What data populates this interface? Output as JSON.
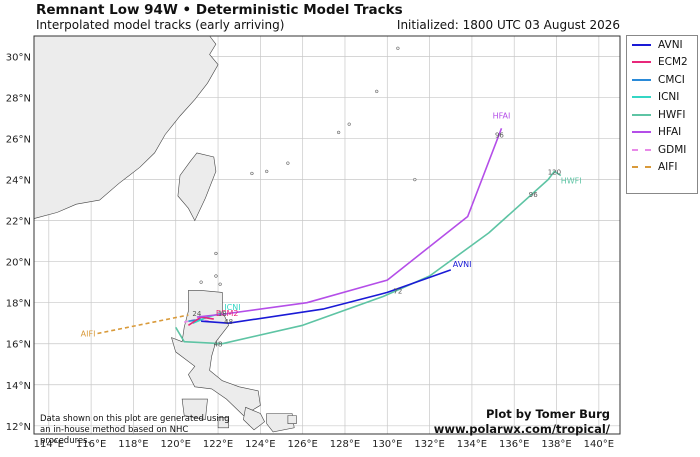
{
  "header": {
    "title": "Remnant Low 94W • Deterministic Model Tracks",
    "subtitle": "Interpolated model tracks (early arriving)",
    "initialized": "Initialized: 1800 UTC 03 August 2026"
  },
  "map": {
    "lon_range": [
      113.3,
      141.0
    ],
    "lat_range": [
      11.6,
      31.0
    ],
    "lon_ticks": [
      "114°E",
      "116°E",
      "118°E",
      "120°E",
      "122°E",
      "124°E",
      "126°E",
      "128°E",
      "130°E",
      "132°E",
      "134°E",
      "136°E",
      "138°E",
      "140°E"
    ],
    "lat_ticks": [
      "12°N",
      "14°N",
      "16°N",
      "18°N",
      "20°N",
      "22°N",
      "24°N",
      "26°N",
      "28°N",
      "30°N"
    ],
    "land_color": "#ececec",
    "ocean_color": "#ffffff"
  },
  "legend": [
    {
      "name": "AVNI",
      "color": "#1a1ad6",
      "dash": false
    },
    {
      "name": "ECM2",
      "color": "#e8287a",
      "dash": false
    },
    {
      "name": "CMCI",
      "color": "#2a8ad8",
      "dash": false
    },
    {
      "name": "ICNI",
      "color": "#34d6c4",
      "dash": false
    },
    {
      "name": "HWFI",
      "color": "#5ec4a4",
      "dash": false
    },
    {
      "name": "HFAI",
      "color": "#b44ee8",
      "dash": false
    },
    {
      "name": "GDMI",
      "color": "#e88ae8",
      "dash": true
    },
    {
      "name": "AIFI",
      "color": "#d99a3a",
      "dash": true
    }
  ],
  "tracks": [
    {
      "name": "AIFI",
      "label": "AIFI",
      "points": [
        [
          116.3,
          16.5
        ],
        [
          120.6,
          17.4
        ]
      ]
    },
    {
      "name": "GDMI",
      "label": "",
      "points": [
        [
          120.4,
          17.05
        ],
        [
          121.0,
          17.2
        ],
        [
          121.6,
          17.1
        ]
      ]
    },
    {
      "name": "ICNI",
      "label": "ICNI",
      "points": [
        [
          120.8,
          17.0
        ],
        [
          121.5,
          17.3
        ],
        [
          122.2,
          17.5
        ]
      ]
    },
    {
      "name": "CMCI",
      "label": "",
      "points": [
        [
          120.6,
          17.1
        ],
        [
          121.3,
          17.2
        ]
      ]
    },
    {
      "name": "ECM2",
      "label": "ECM2",
      "points": [
        [
          120.6,
          16.9
        ],
        [
          121.2,
          17.3
        ],
        [
          121.8,
          17.2
        ]
      ]
    },
    {
      "name": "AVNI",
      "label": "AVNI",
      "points": [
        [
          121.2,
          17.1
        ],
        [
          122.5,
          17.0
        ],
        [
          127.0,
          17.7
        ],
        [
          130.0,
          18.5
        ],
        [
          133.0,
          19.6
        ]
      ]
    },
    {
      "name": "HWFI",
      "label": "HWFI",
      "points": [
        [
          120.0,
          16.8
        ],
        [
          120.4,
          16.1
        ],
        [
          122.2,
          16.0
        ],
        [
          126.0,
          16.9
        ],
        [
          129.8,
          18.3
        ],
        [
          132.0,
          19.3
        ],
        [
          134.8,
          21.4
        ],
        [
          137.6,
          24.0
        ],
        [
          137.9,
          24.4
        ],
        [
          138.2,
          24.2
        ]
      ]
    },
    {
      "name": "HFAI",
      "label": "HFAI",
      "points": [
        [
          121.0,
          17.3
        ],
        [
          122.3,
          17.45
        ],
        [
          126.2,
          18.0
        ],
        [
          130.0,
          19.1
        ],
        [
          133.8,
          22.2
        ],
        [
          135.4,
          26.5
        ]
      ]
    }
  ],
  "point_labels": [
    {
      "text": "18",
      "lon": 122.2,
      "lat": 17.5
    },
    {
      "text": "48",
      "lon": 122.0,
      "lat": 16.0
    },
    {
      "text": "72",
      "lon": 130.5,
      "lat": 18.6
    },
    {
      "text": "96",
      "lon": 136.9,
      "lat": 23.3
    },
    {
      "text": "120",
      "lon": 137.9,
      "lat": 24.4
    },
    {
      "text": "96",
      "lon": 135.3,
      "lat": 26.2
    },
    {
      "text": "24",
      "lon": 121.0,
      "lat": 17.5
    },
    {
      "text": "48",
      "lon": 122.5,
      "lat": 17.1
    }
  ],
  "credits": {
    "plot_by": "Plot by Tomer Burg",
    "url": "www.polarwx.com/tropical/",
    "note_line1": "Data shown on this plot are generated using",
    "note_line2": "an in-house method based on NHC procedures."
  }
}
